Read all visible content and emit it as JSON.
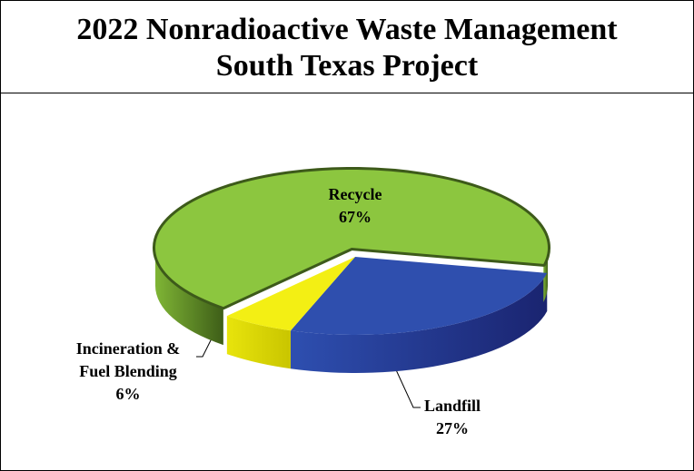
{
  "chart_data": {
    "type": "pie3d",
    "title": "2022 Nonradioactive Waste Management",
    "subtitle": "South Texas Project",
    "categories": [
      "Landfill",
      "Incineration & Fuel Blending",
      "Recycle"
    ],
    "values": [
      27,
      6,
      67
    ],
    "value_labels": [
      "27%",
      "6%",
      "67%"
    ],
    "colors": [
      "#2f4fae",
      "#f3ef14",
      "#8cc63f"
    ]
  }
}
